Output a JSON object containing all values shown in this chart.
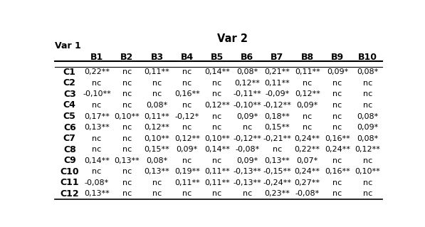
{
  "title_var2": "Var 2",
  "label_var1": "Var 1",
  "col_headers": [
    "B1",
    "B2",
    "B3",
    "B4",
    "B5",
    "B6",
    "B7",
    "B8",
    "B9",
    "B10"
  ],
  "row_headers": [
    "C1",
    "C2",
    "C3",
    "C4",
    "C5",
    "C6",
    "C7",
    "C8",
    "C9",
    "C10",
    "C11",
    "C12"
  ],
  "table_data": [
    [
      "0,22**",
      "nc",
      "0,11**",
      "nc",
      "0,14**",
      "0,08*",
      "0,21**",
      "0,11**",
      "0,09*",
      "0,08*"
    ],
    [
      "nc",
      "nc",
      "nc",
      "nc",
      "nc",
      "0,12**",
      "0,11**",
      "nc",
      "nc",
      "nc"
    ],
    [
      "-0,10**",
      "nc",
      "nc",
      "0,16**",
      "nc",
      "-0,11**",
      "-0,09*",
      "0,12**",
      "nc",
      "nc"
    ],
    [
      "nc",
      "nc",
      "0,08*",
      "nc",
      "0,12**",
      "-0,10**",
      "-0,12**",
      "0,09*",
      "nc",
      "nc"
    ],
    [
      "0,17**",
      "0,10**",
      "0,11**",
      "-0,12*",
      "nc",
      "0,09*",
      "0,18**",
      "nc",
      "nc",
      "0,08*"
    ],
    [
      "0,13**",
      "nc",
      "0,12**",
      "nc",
      "nc",
      "nc",
      "0,15**",
      "nc",
      "nc",
      "0,09*"
    ],
    [
      "nc",
      "nc",
      "0,10**",
      "0,12**",
      "0,10**",
      "-0,12**",
      "-0,21**",
      "0,24**",
      "0,16**",
      "0,08*"
    ],
    [
      "nc",
      "nc",
      "0,15**",
      "0,09*",
      "0,14**",
      "-0,08*",
      "nc",
      "0,22**",
      "0,24**",
      "0,12**"
    ],
    [
      "0,14**",
      "0,13**",
      "0,08*",
      "nc",
      "nc",
      "0,09*",
      "0,13**",
      "0,07*",
      "nc",
      "nc"
    ],
    [
      "nc",
      "nc",
      "0,13**",
      "0,19**",
      "0,11**",
      "-0,13**",
      "-0,15**",
      "0,24**",
      "0,16**",
      "0,10**"
    ],
    [
      "-0,08*",
      "nc",
      "nc",
      "0,11**",
      "0,11**",
      "-0,13**",
      "-0,24**",
      "0,27**",
      "nc",
      "nc"
    ],
    [
      "0,13**",
      "nc",
      "nc",
      "nc",
      "nc",
      "nc",
      "0,23**",
      "-0,08*",
      "nc",
      "nc"
    ]
  ],
  "bg_color": "#ffffff",
  "text_color": "#000000",
  "font_size": 8.0,
  "header_font_size": 9.0,
  "title_font_size": 10.5
}
